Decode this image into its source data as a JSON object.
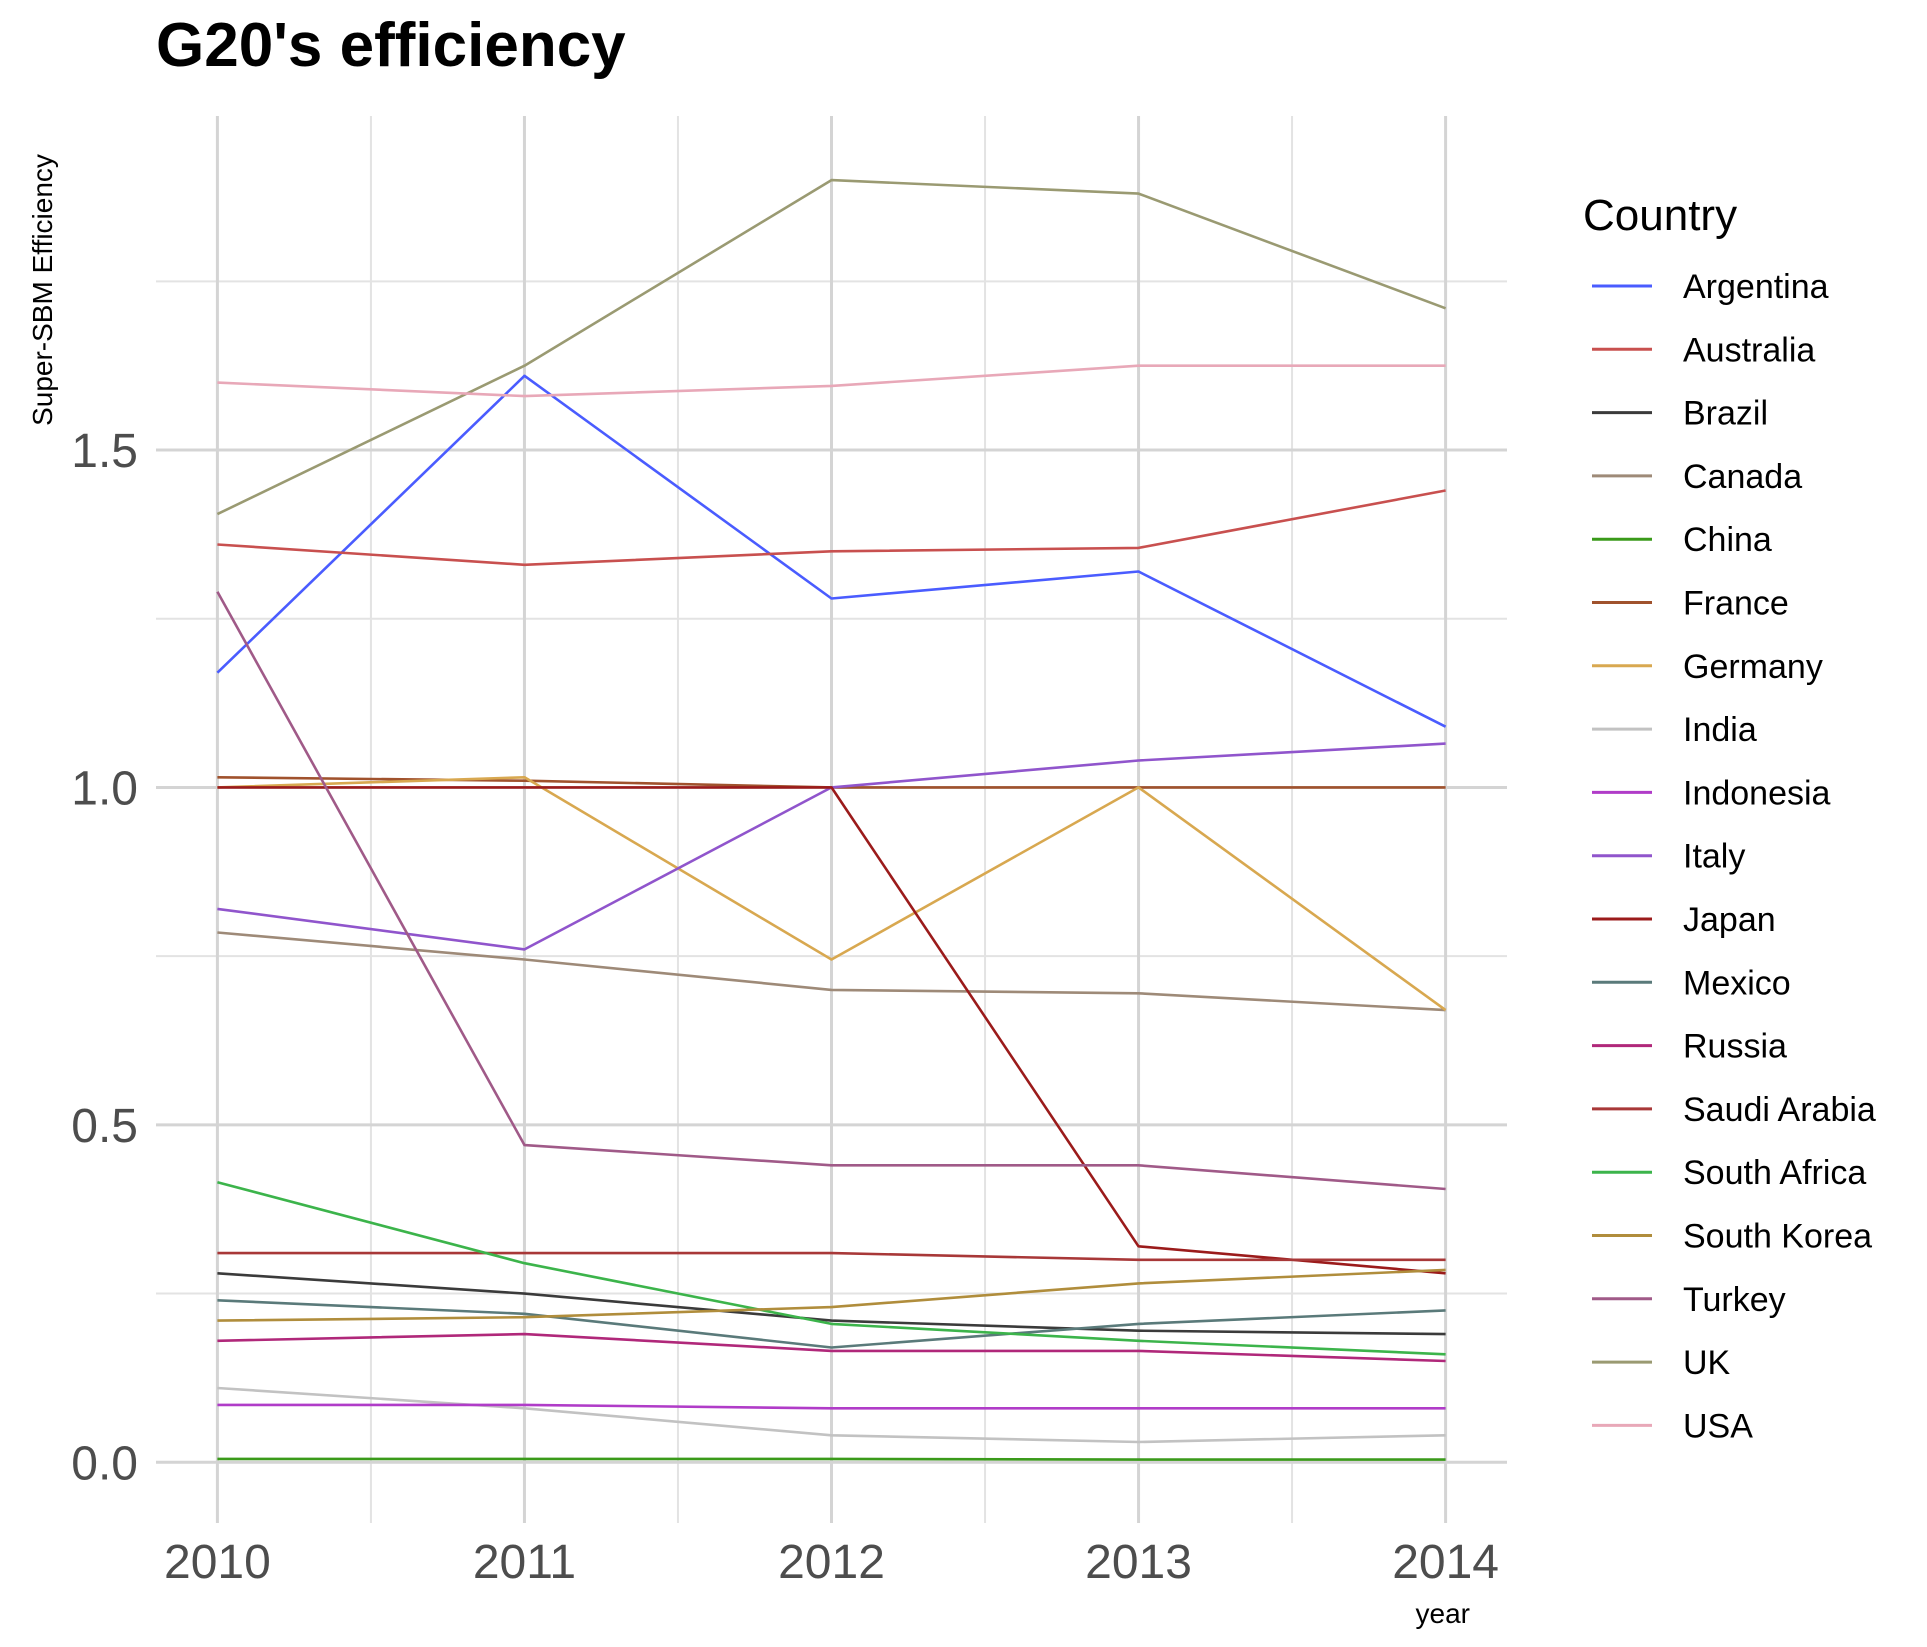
{
  "chart_data": {
    "type": "line",
    "title": "G20's efficiency",
    "xlabel": "year",
    "ylabel": "Super-SBM Efficiency",
    "x": [
      2010,
      2011,
      2012,
      2013,
      2014
    ],
    "x_tick_labels": [
      "2010",
      "2011",
      "2012",
      "2013",
      "2014"
    ],
    "y_ticks": [
      0.0,
      0.5,
      1.0,
      1.5
    ],
    "y_tick_labels": [
      "0.0",
      "0.5",
      "1.0",
      "1.5"
    ],
    "xlim": [
      2009.8,
      2014.2
    ],
    "ylim": [
      -0.09,
      1.995
    ],
    "grid": true,
    "legend_title": "Country",
    "legend_position": "right",
    "series": [
      {
        "name": "Argentina",
        "color": "#4a5cff",
        "values": [
          1.17,
          1.61,
          1.28,
          1.32,
          1.09
        ]
      },
      {
        "name": "Australia",
        "color": "#c8504f",
        "values": [
          1.36,
          1.33,
          1.35,
          1.355,
          1.44
        ]
      },
      {
        "name": "Brazil",
        "color": "#3b3b3b",
        "values": [
          0.28,
          0.25,
          0.21,
          0.195,
          0.19
        ]
      },
      {
        "name": "Canada",
        "color": "#9e8a78",
        "values": [
          0.785,
          0.745,
          0.7,
          0.695,
          0.67
        ]
      },
      {
        "name": "China",
        "color": "#3a9a1a",
        "values": [
          0.005,
          0.005,
          0.005,
          0.004,
          0.004
        ]
      },
      {
        "name": "France",
        "color": "#a0522d",
        "values": [
          1.015,
          1.01,
          1.0,
          1.0,
          1.0
        ]
      },
      {
        "name": "Germany",
        "color": "#d8a850",
        "values": [
          1.0,
          1.015,
          0.745,
          1.0,
          0.67
        ]
      },
      {
        "name": "India",
        "color": "#c2c2c2",
        "values": [
          0.11,
          0.08,
          0.04,
          0.03,
          0.04
        ]
      },
      {
        "name": "Indonesia",
        "color": "#b03cc8",
        "values": [
          0.085,
          0.085,
          0.08,
          0.08,
          0.08
        ]
      },
      {
        "name": "Italy",
        "color": "#9055cc",
        "values": [
          0.82,
          0.76,
          1.0,
          1.04,
          1.065
        ]
      },
      {
        "name": "Japan",
        "color": "#9b1b1b",
        "values": [
          1.0,
          1.0,
          1.0,
          0.32,
          0.28
        ]
      },
      {
        "name": "Mexico",
        "color": "#5a7a7a",
        "values": [
          0.24,
          0.22,
          0.17,
          0.205,
          0.225
        ]
      },
      {
        "name": "Russia",
        "color": "#b0287a",
        "values": [
          0.18,
          0.19,
          0.165,
          0.165,
          0.15
        ]
      },
      {
        "name": "Saudi Arabia",
        "color": "#a83838",
        "values": [
          0.31,
          0.31,
          0.31,
          0.3,
          0.3
        ]
      },
      {
        "name": "South Africa",
        "color": "#3cb44b",
        "values": [
          0.415,
          0.295,
          0.205,
          0.18,
          0.16
        ]
      },
      {
        "name": "South Korea",
        "color": "#b08d3c",
        "values": [
          0.21,
          0.215,
          0.23,
          0.265,
          0.285
        ]
      },
      {
        "name": "Turkey",
        "color": "#a05a88",
        "values": [
          1.29,
          0.47,
          0.44,
          0.44,
          0.405
        ]
      },
      {
        "name": "UK",
        "color": "#9a9a72",
        "values": [
          1.405,
          1.625,
          1.9,
          1.88,
          1.71
        ]
      },
      {
        "name": "USA",
        "color": "#e8a8b8",
        "values": [
          1.6,
          1.58,
          1.595,
          1.625,
          1.625
        ]
      }
    ]
  }
}
